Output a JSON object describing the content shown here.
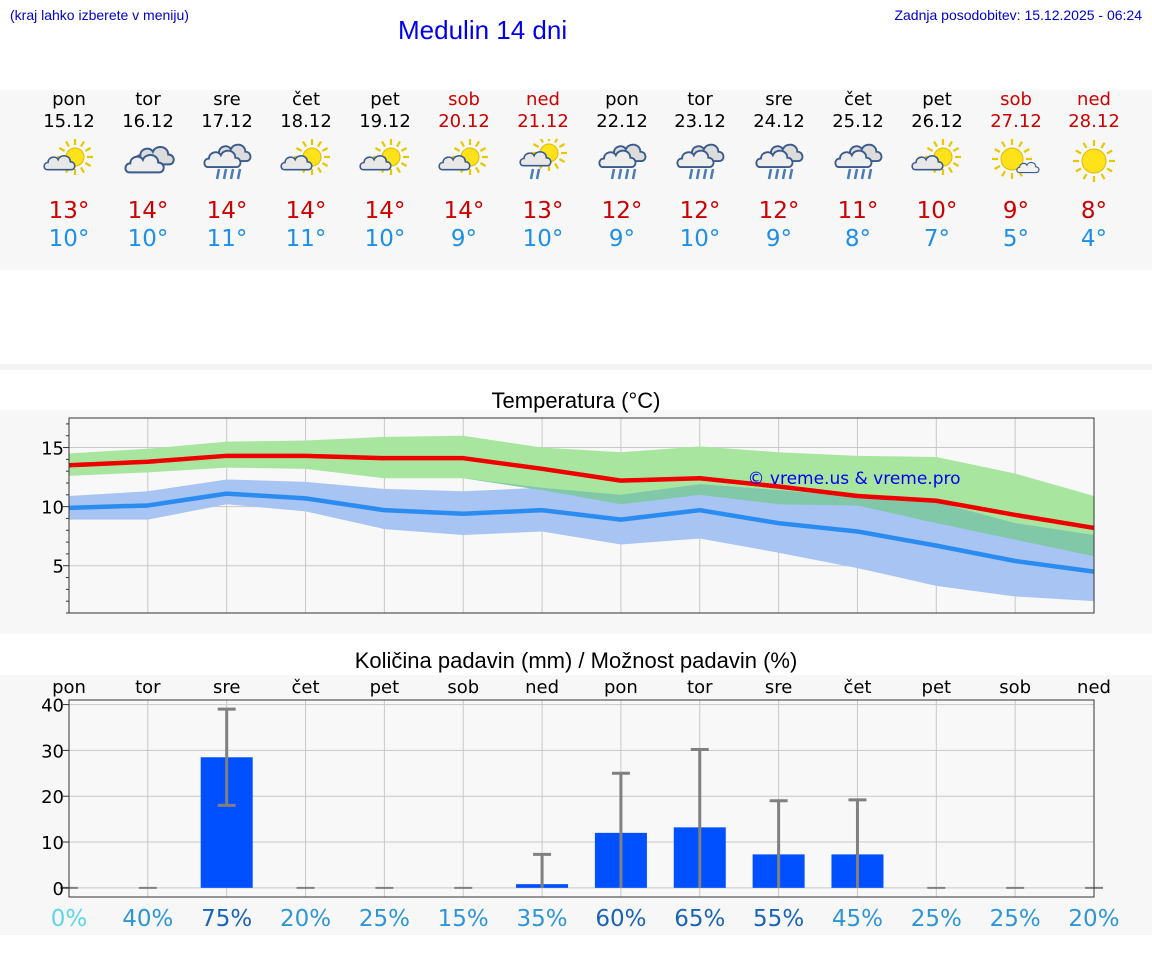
{
  "header": {
    "menu_hint": "(kraj lahko izberete v meniju)",
    "title": "Medulin 14 dni",
    "updated": "Zadnja posodobitev: 15.12.2025 - 06:24"
  },
  "days": [
    {
      "name": "pon",
      "date": "15.12",
      "weekend": false,
      "icon": "partly-sunny-icon",
      "tmax": "13°",
      "tmin": "10°"
    },
    {
      "name": "tor",
      "date": "16.12",
      "weekend": false,
      "icon": "cloudy-icon",
      "tmax": "14°",
      "tmin": "10°"
    },
    {
      "name": "sre",
      "date": "17.12",
      "weekend": false,
      "icon": "rain-icon",
      "tmax": "14°",
      "tmin": "11°"
    },
    {
      "name": "čet",
      "date": "18.12",
      "weekend": false,
      "icon": "partly-sunny-icon",
      "tmax": "14°",
      "tmin": "11°"
    },
    {
      "name": "pet",
      "date": "19.12",
      "weekend": false,
      "icon": "partly-sunny-icon",
      "tmax": "14°",
      "tmin": "10°"
    },
    {
      "name": "sob",
      "date": "20.12",
      "weekend": true,
      "icon": "partly-sunny-icon",
      "tmax": "14°",
      "tmin": "9°"
    },
    {
      "name": "ned",
      "date": "21.12",
      "weekend": true,
      "icon": "sun-showers-icon",
      "tmax": "13°",
      "tmin": "10°"
    },
    {
      "name": "pon",
      "date": "22.12",
      "weekend": false,
      "icon": "rain-icon",
      "tmax": "12°",
      "tmin": "9°"
    },
    {
      "name": "tor",
      "date": "23.12",
      "weekend": false,
      "icon": "rain-icon",
      "tmax": "12°",
      "tmin": "10°"
    },
    {
      "name": "sre",
      "date": "24.12",
      "weekend": false,
      "icon": "rain-icon",
      "tmax": "12°",
      "tmin": "9°"
    },
    {
      "name": "čet",
      "date": "25.12",
      "weekend": false,
      "icon": "rain-icon",
      "tmax": "11°",
      "tmin": "8°"
    },
    {
      "name": "pet",
      "date": "26.12",
      "weekend": false,
      "icon": "partly-sunny-icon",
      "tmax": "10°",
      "tmin": "7°"
    },
    {
      "name": "sob",
      "date": "27.12",
      "weekend": true,
      "icon": "mostly-sunny-icon",
      "tmax": "9°",
      "tmin": "5°"
    },
    {
      "name": "ned",
      "date": "28.12",
      "weekend": true,
      "icon": "sunny-icon",
      "tmax": "8°",
      "tmin": "4°"
    }
  ],
  "chart_data": [
    {
      "type": "line",
      "title": "Temperatura (°C)",
      "watermark": "© vreme.us & vreme.pro",
      "x": [
        0,
        1,
        2,
        3,
        4,
        5,
        6,
        7,
        8,
        9,
        10,
        11,
        12,
        13
      ],
      "ylim": [
        1,
        17.5
      ],
      "yticks": [
        5,
        10,
        15
      ],
      "colors": {
        "max": "#ee0000",
        "min": "#2a8cf0",
        "max_band": "#a8e6a0",
        "min_band": "#a8c4f2",
        "overlap": "#80c8a8"
      },
      "series": [
        {
          "name": "max",
          "values": [
            13.5,
            13.8,
            14.3,
            14.3,
            14.1,
            14.1,
            13.2,
            12.2,
            12.4,
            11.7,
            10.9,
            10.5,
            9.3,
            8.2
          ],
          "band_low": [
            12.6,
            12.9,
            13.3,
            13.2,
            12.4,
            12.4,
            11.4,
            10.2,
            11.0,
            10.2,
            10.1,
            8.6,
            7.2,
            5.8
          ],
          "band_high": [
            14.5,
            14.9,
            15.5,
            15.6,
            15.9,
            16.0,
            15.0,
            14.6,
            15.1,
            14.6,
            14.3,
            14.2,
            12.8,
            10.9
          ]
        },
        {
          "name": "min",
          "values": [
            9.9,
            10.1,
            11.1,
            10.7,
            9.7,
            9.4,
            9.7,
            8.9,
            9.7,
            8.6,
            7.9,
            6.7,
            5.4,
            4.5
          ],
          "band_low": [
            8.9,
            8.9,
            10.2,
            9.6,
            8.1,
            7.6,
            7.9,
            6.8,
            7.3,
            6.1,
            4.8,
            3.3,
            2.4,
            2.0
          ],
          "band_high": [
            10.9,
            11.3,
            12.3,
            12.1,
            11.5,
            11.3,
            11.6,
            11.0,
            11.9,
            11.4,
            10.8,
            10.4,
            8.6,
            7.6
          ]
        }
      ]
    },
    {
      "type": "bar",
      "title": "Količina padavin (mm) / Možnost padavin (%)",
      "categories": [
        "pon",
        "tor",
        "sre",
        "čet",
        "pet",
        "sob",
        "ned",
        "pon",
        "tor",
        "sre",
        "čet",
        "pet",
        "sob",
        "ned"
      ],
      "values": [
        0,
        0,
        28.5,
        0,
        0,
        0,
        0.8,
        12,
        13.2,
        7.3,
        7.3,
        0,
        0,
        0
      ],
      "error_high": [
        0,
        0,
        39,
        0,
        0,
        0,
        7.3,
        25,
        30.2,
        19,
        19.2,
        0,
        0,
        0
      ],
      "error_low": [
        0,
        0,
        18,
        0,
        0,
        0,
        0,
        0,
        0,
        0,
        0,
        0,
        0,
        0
      ],
      "probabilities": [
        "0%",
        "40%",
        "75%",
        "20%",
        "25%",
        "15%",
        "35%",
        "60%",
        "65%",
        "55%",
        "45%",
        "25%",
        "25%",
        "20%"
      ],
      "probability_colors": [
        "#5fd6e8",
        "#2e96d6",
        "#1a64b8",
        "#2e96d6",
        "#2e96d6",
        "#2e96d6",
        "#2e96d6",
        "#1a64b8",
        "#1a64b8",
        "#1a64b8",
        "#2e96d6",
        "#2e96d6",
        "#2e96d6",
        "#2e96d6"
      ],
      "ylim": [
        -2,
        41
      ],
      "yticks": [
        0,
        10,
        20,
        30,
        40
      ],
      "bar_color": "#0050ff",
      "error_color": "#808080"
    }
  ]
}
